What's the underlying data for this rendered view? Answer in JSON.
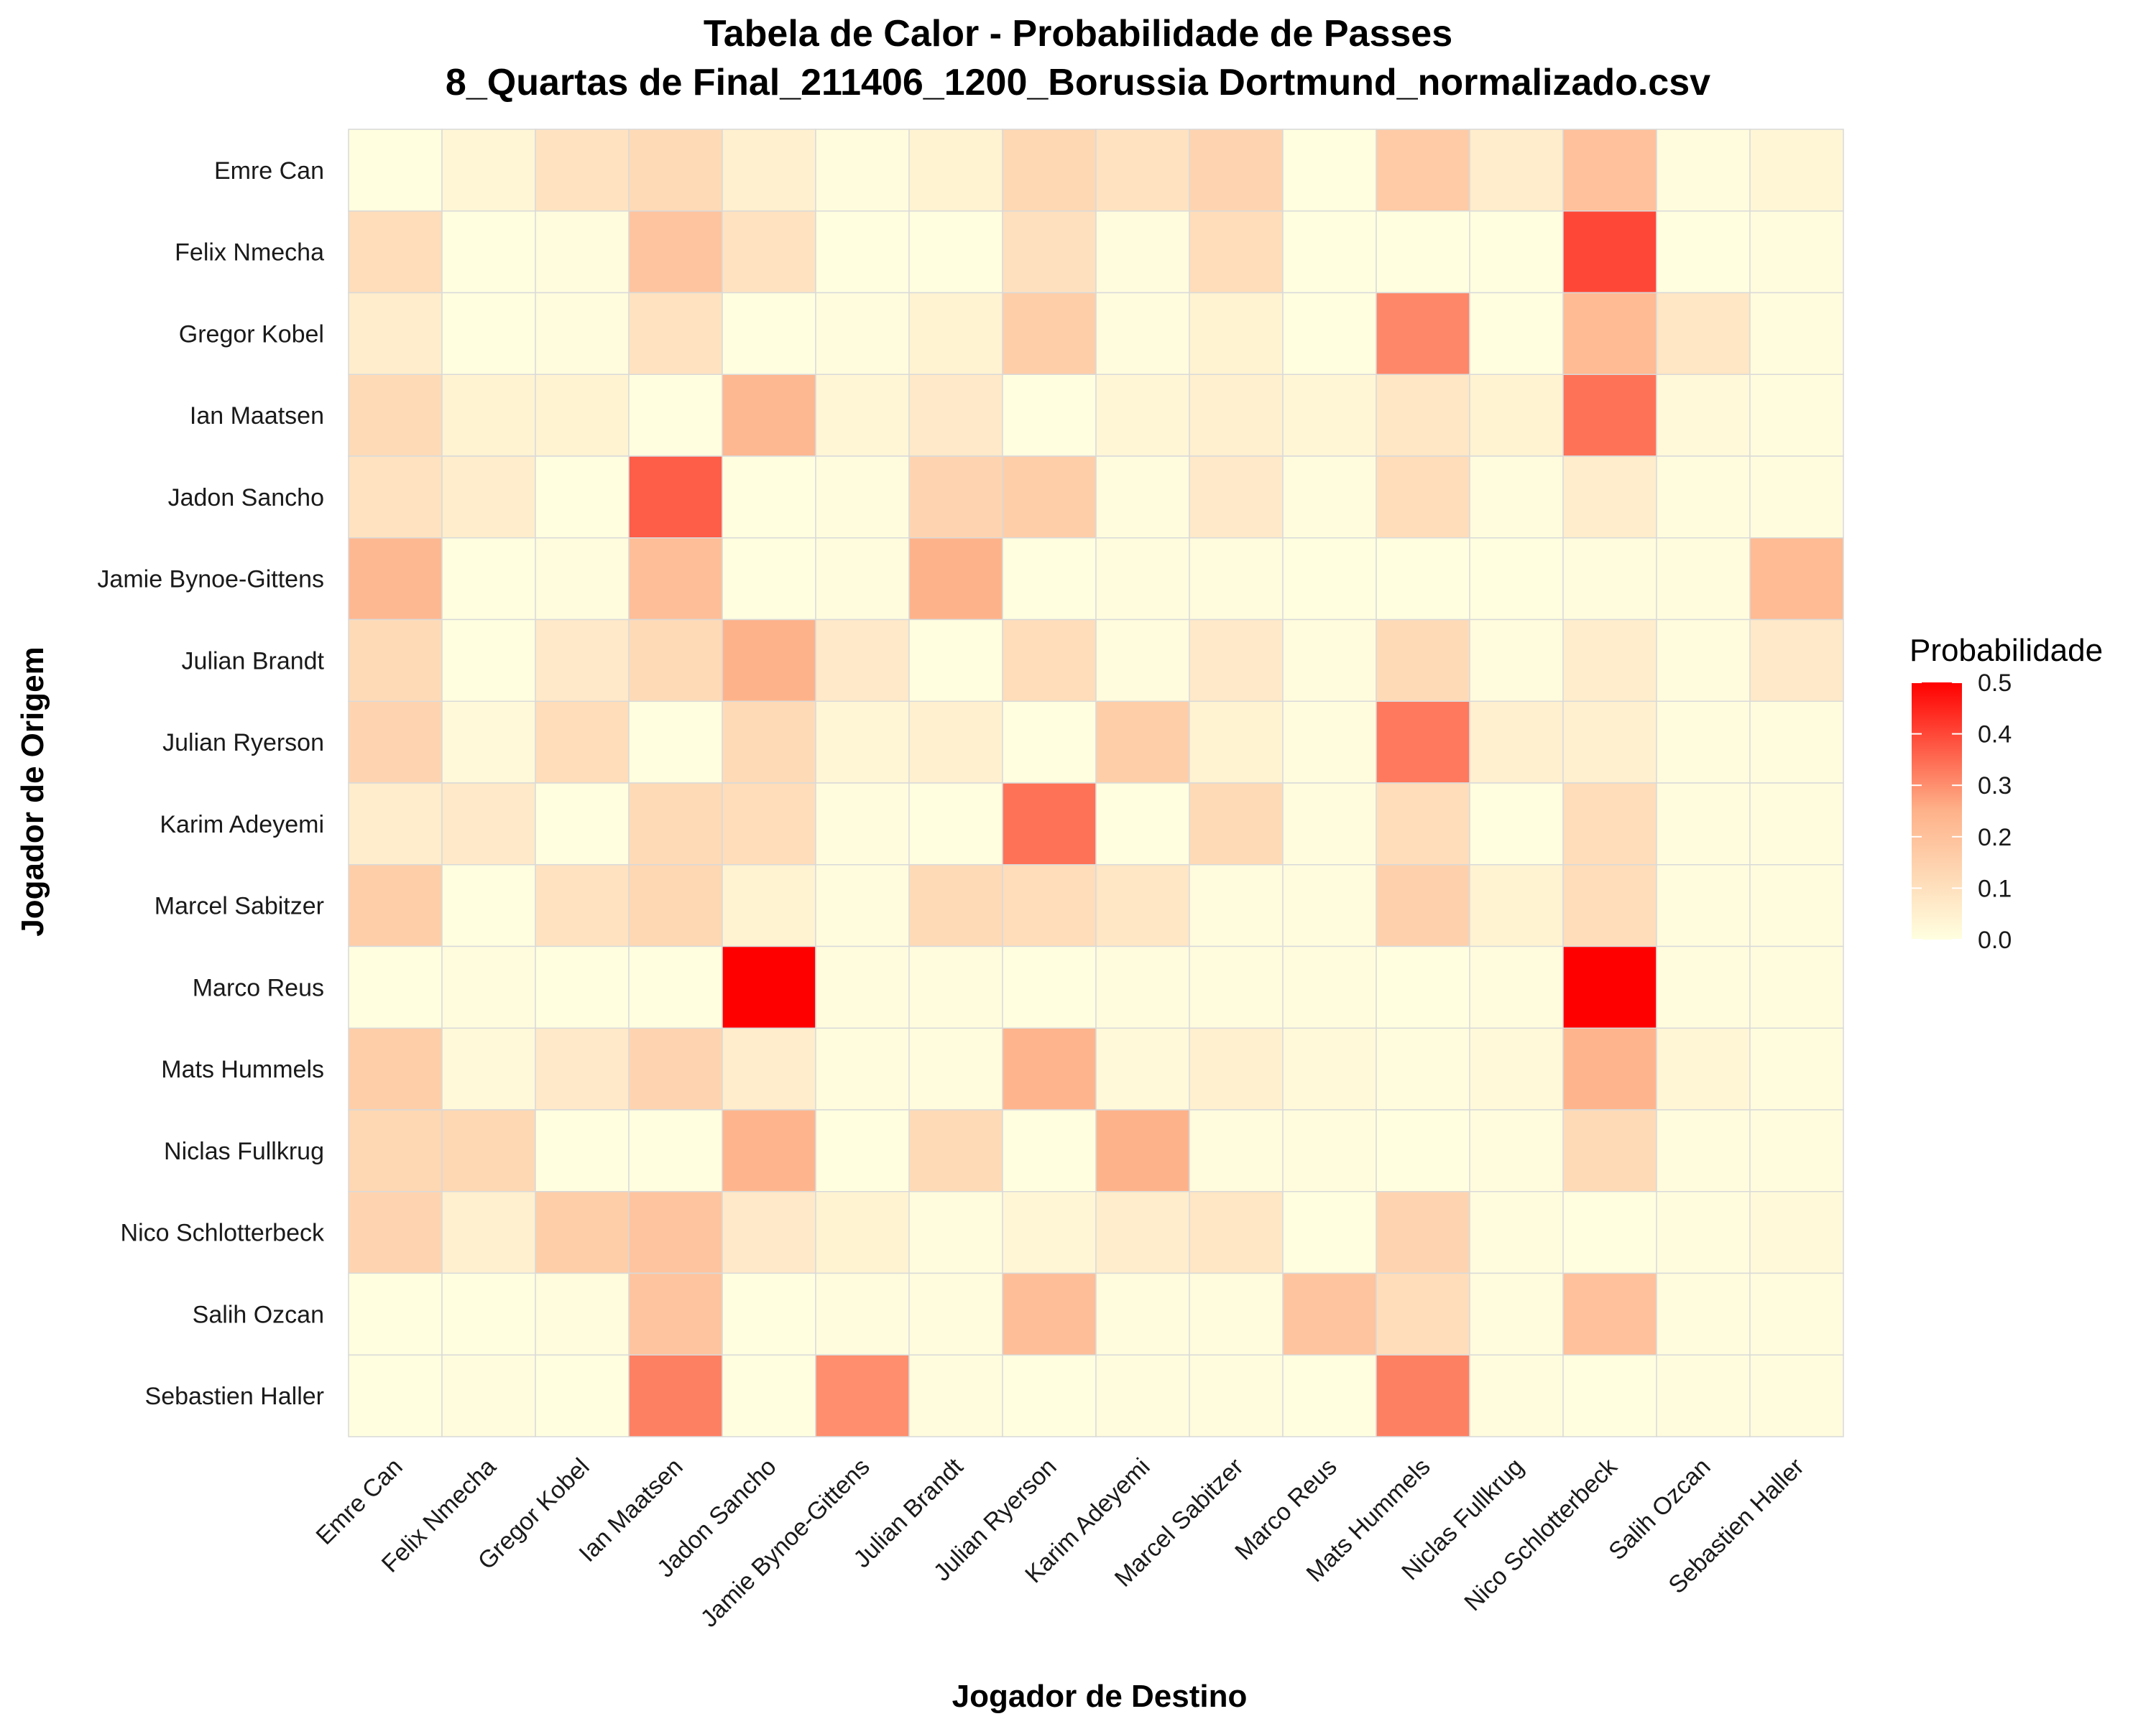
{
  "chart_data": {
    "type": "heatmap",
    "title": "Tabela de Calor - Probabilidade de Passes",
    "subtitle": "8_Quartas de Final_211406_1200_Borussia Dortmund_normalizado.csv",
    "xlabel": "Jogador de Destino",
    "ylabel": "Jogador de Origem",
    "x_categories": [
      "Emre Can",
      "Felix Nmecha",
      "Gregor Kobel",
      "Ian Maatsen",
      "Jadon Sancho",
      "Jamie Bynoe-Gittens",
      "Julian Brandt",
      "Julian Ryerson",
      "Karim Adeyemi",
      "Marcel Sabitzer",
      "Marco Reus",
      "Mats Hummels",
      "Niclas Fullkrug",
      "Nico Schlotterbeck",
      "Salih Ozcan",
      "Sebastien Haller"
    ],
    "y_categories": [
      "Emre Can",
      "Felix Nmecha",
      "Gregor Kobel",
      "Ian Maatsen",
      "Jadon Sancho",
      "Jamie Bynoe-Gittens",
      "Julian Brandt",
      "Julian Ryerson",
      "Karim Adeyemi",
      "Marcel Sabitzer",
      "Marco Reus",
      "Mats Hummels",
      "Niclas Fullkrug",
      "Nico Schlotterbeck",
      "Salih Ozcan",
      "Sebastien Haller"
    ],
    "values": [
      [
        0.0,
        0.03,
        0.09,
        0.12,
        0.05,
        0.01,
        0.04,
        0.13,
        0.09,
        0.14,
        0.0,
        0.17,
        0.06,
        0.2,
        0.01,
        0.03
      ],
      [
        0.11,
        0.0,
        0.01,
        0.19,
        0.09,
        0.0,
        0.0,
        0.1,
        0.01,
        0.11,
        0.0,
        0.0,
        0.0,
        0.4,
        0.0,
        0.01
      ],
      [
        0.06,
        0.0,
        0.01,
        0.09,
        0.0,
        0.01,
        0.04,
        0.16,
        0.01,
        0.04,
        0.0,
        0.31,
        0.0,
        0.22,
        0.08,
        0.01
      ],
      [
        0.12,
        0.04,
        0.04,
        0.0,
        0.23,
        0.03,
        0.07,
        0.0,
        0.03,
        0.05,
        0.03,
        0.08,
        0.04,
        0.34,
        0.02,
        0.01
      ],
      [
        0.09,
        0.06,
        0.0,
        0.37,
        0.0,
        0.01,
        0.14,
        0.16,
        0.01,
        0.07,
        0.01,
        0.11,
        0.01,
        0.06,
        0.01,
        0.01
      ],
      [
        0.23,
        0.0,
        0.01,
        0.21,
        0.0,
        0.01,
        0.25,
        0.0,
        0.01,
        0.01,
        0.0,
        0.0,
        0.0,
        0.01,
        0.01,
        0.22
      ],
      [
        0.12,
        0.0,
        0.07,
        0.12,
        0.25,
        0.07,
        0.0,
        0.11,
        0.01,
        0.07,
        0.01,
        0.12,
        0.01,
        0.06,
        0.01,
        0.07
      ],
      [
        0.14,
        0.02,
        0.11,
        0.0,
        0.12,
        0.03,
        0.05,
        0.0,
        0.16,
        0.04,
        0.01,
        0.33,
        0.05,
        0.05,
        0.01,
        0.01
      ],
      [
        0.06,
        0.07,
        0.0,
        0.12,
        0.11,
        0.01,
        0.0,
        0.34,
        0.0,
        0.12,
        0.01,
        0.11,
        0.0,
        0.11,
        0.01,
        0.01
      ],
      [
        0.16,
        0.0,
        0.09,
        0.13,
        0.04,
        0.01,
        0.12,
        0.11,
        0.08,
        0.01,
        0.01,
        0.15,
        0.04,
        0.11,
        0.01,
        0.01
      ],
      [
        0.0,
        0.01,
        0.0,
        0.0,
        0.5,
        0.01,
        0.01,
        0.0,
        0.01,
        0.01,
        0.01,
        0.0,
        0.01,
        0.5,
        0.01,
        0.01
      ],
      [
        0.16,
        0.02,
        0.07,
        0.14,
        0.06,
        0.01,
        0.01,
        0.24,
        0.02,
        0.05,
        0.02,
        0.01,
        0.02,
        0.24,
        0.03,
        0.01
      ],
      [
        0.13,
        0.13,
        0.0,
        0.0,
        0.24,
        0.0,
        0.12,
        0.0,
        0.25,
        0.01,
        0.01,
        0.0,
        0.01,
        0.12,
        0.01,
        0.01
      ],
      [
        0.14,
        0.05,
        0.16,
        0.19,
        0.07,
        0.04,
        0.01,
        0.03,
        0.06,
        0.08,
        0.0,
        0.14,
        0.01,
        0.0,
        0.01,
        0.02
      ],
      [
        0.0,
        0.0,
        0.01,
        0.19,
        0.0,
        0.01,
        0.01,
        0.21,
        0.01,
        0.01,
        0.19,
        0.11,
        0.01,
        0.2,
        0.01,
        0.01
      ],
      [
        0.0,
        0.01,
        0.0,
        0.32,
        0.0,
        0.3,
        0.01,
        0.0,
        0.01,
        0.01,
        0.0,
        0.32,
        0.01,
        0.0,
        0.01,
        0.01
      ]
    ],
    "colorscale": {
      "low": "#FFFFE0",
      "high": "#FF0000",
      "range": [
        0,
        0.5
      ]
    },
    "legend": {
      "title": "Probabilidade",
      "ticks": [
        "0.0",
        "0.1",
        "0.2",
        "0.3",
        "0.4",
        "0.5"
      ],
      "position": "right"
    },
    "grid": true
  }
}
